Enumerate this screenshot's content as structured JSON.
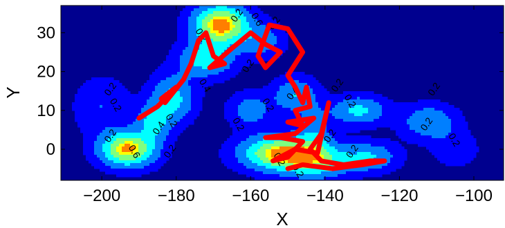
{
  "chart_data": {
    "type": "contour",
    "xlabel": "X",
    "ylabel": "Y",
    "xlim": [
      -211,
      -92
    ],
    "ylim": [
      -8,
      37
    ],
    "xticks": [
      -200,
      -180,
      -160,
      -140,
      -120,
      -100
    ],
    "yticks": [
      0,
      10,
      20,
      30
    ],
    "contour_levels": [
      0.2,
      0.4,
      0.6
    ],
    "contour_labels": [
      {
        "text": "0.2",
        "x": -163,
        "y": 34
      },
      {
        "text": "0.6",
        "x": -159,
        "y": 33
      },
      {
        "text": "0.2",
        "x": -153,
        "y": 32
      },
      {
        "text": "0.2",
        "x": -174,
        "y": 29
      },
      {
        "text": "0.2",
        "x": -160,
        "y": 21
      },
      {
        "text": "0.4",
        "x": -173,
        "y": 16
      },
      {
        "text": "0.2",
        "x": -197,
        "y": 15
      },
      {
        "text": "0.2",
        "x": -197,
        "y": 11
      },
      {
        "text": "0.4",
        "x": -148,
        "y": 14
      },
      {
        "text": "0.2",
        "x": -156,
        "y": 11
      },
      {
        "text": "0.2",
        "x": -136,
        "y": 16
      },
      {
        "text": "0.2",
        "x": -134,
        "y": 12
      },
      {
        "text": "0.2",
        "x": -110,
        "y": 15
      },
      {
        "text": "0.2",
        "x": -182,
        "y": 7
      },
      {
        "text": "0.4",
        "x": -184,
        "y": 5
      },
      {
        "text": "0.2",
        "x": -164,
        "y": 6
      },
      {
        "text": "0.2",
        "x": -112,
        "y": 6
      },
      {
        "text": "0.2",
        "x": -106,
        "y": 2
      },
      {
        "text": "0.2",
        "x": -197,
        "y": 3
      },
      {
        "text": "0.6",
        "x": -192,
        "y": -1
      },
      {
        "text": "0.2",
        "x": -181,
        "y": -1
      },
      {
        "text": "0.2",
        "x": -153,
        "y": -3
      },
      {
        "text": "0.2",
        "x": -138,
        "y": 3
      },
      {
        "text": "0.2",
        "x": -148,
        "y": -6
      },
      {
        "text": "0.2",
        "x": -132,
        "y": -1
      }
    ],
    "colormap": [
      "#00008f",
      "#0000ff",
      "#007fff",
      "#00ffff",
      "#7fff7f",
      "#ffff00",
      "#ff7f00"
    ],
    "density_peaks": [
      {
        "x": -168,
        "y": 32,
        "sx": 5,
        "sy": 3.5,
        "w": 1.0
      },
      {
        "x": -193,
        "y": 0,
        "sx": 5,
        "sy": 3,
        "w": 0.95
      },
      {
        "x": -152,
        "y": -1,
        "sx": 7,
        "sy": 3,
        "w": 0.92
      },
      {
        "x": -172,
        "y": 23,
        "sx": 5,
        "sy": 3,
        "w": 0.5
      },
      {
        "x": -181,
        "y": 13,
        "sx": 4,
        "sy": 4,
        "w": 0.48
      },
      {
        "x": -186,
        "y": 7,
        "sx": 3,
        "sy": 3,
        "w": 0.45
      },
      {
        "x": -142,
        "y": -3,
        "sx": 6,
        "sy": 3,
        "w": 0.55
      },
      {
        "x": -128,
        "y": -2,
        "sx": 5,
        "sy": 2.5,
        "w": 0.4
      },
      {
        "x": -148,
        "y": 14,
        "sx": 4,
        "sy": 3,
        "w": 0.4
      },
      {
        "x": -131,
        "y": 10,
        "sx": 5,
        "sy": 2.5,
        "w": 0.45
      },
      {
        "x": -112,
        "y": 7,
        "sx": 5,
        "sy": 3,
        "w": 0.38
      },
      {
        "x": -160,
        "y": 10,
        "sx": 4,
        "sy": 3,
        "w": 0.3
      },
      {
        "x": -143,
        "y": 5,
        "sx": 3,
        "sy": 4,
        "w": 0.3
      },
      {
        "x": -157,
        "y": 28,
        "sx": 4,
        "sy": 3,
        "w": 0.3
      },
      {
        "x": -200,
        "y": 11,
        "sx": 5,
        "sy": 5,
        "w": 0.2
      },
      {
        "x": -105,
        "y": 0,
        "sx": 4,
        "sy": 3,
        "w": 0.18
      }
    ],
    "series": [
      {
        "color": "#ff0000",
        "points": [
          [
            -190,
            8
          ],
          [
            -185,
            11
          ],
          [
            -182,
            14
          ],
          [
            -184,
            13
          ],
          [
            -180,
            16
          ],
          [
            -183,
            12
          ],
          [
            -178,
            18
          ],
          [
            -176,
            22
          ],
          [
            -174,
            28
          ],
          [
            -172,
            30
          ],
          [
            -170,
            24
          ],
          [
            -167,
            22
          ],
          [
            -171,
            21
          ],
          [
            -165,
            26
          ],
          [
            -160,
            30
          ],
          [
            -156,
            27
          ],
          [
            -152,
            25
          ],
          [
            -156,
            21
          ],
          [
            -158,
            24
          ],
          [
            -155,
            32
          ],
          [
            -150,
            31
          ],
          [
            -146,
            25
          ],
          [
            -150,
            19
          ],
          [
            -148,
            16
          ],
          [
            -146,
            12
          ],
          [
            -145,
            16
          ],
          [
            -144,
            11
          ],
          [
            -148,
            10
          ],
          [
            -146,
            6
          ],
          [
            -150,
            7
          ],
          [
            -143,
            8
          ],
          [
            -148,
            4
          ],
          [
            -156,
            3
          ],
          [
            -152,
            3
          ],
          [
            -146,
            2
          ],
          [
            -150,
            -2
          ],
          [
            -154,
            -3
          ],
          [
            -148,
            0
          ],
          [
            -142,
            -1
          ],
          [
            -139,
            12
          ],
          [
            -141,
            4
          ],
          [
            -144,
            0
          ],
          [
            -141,
            -3
          ],
          [
            -135,
            -4
          ],
          [
            -128,
            -3
          ],
          [
            -124,
            -3
          ],
          [
            -130,
            -4
          ],
          [
            -138,
            -5
          ],
          [
            -146,
            -4
          ],
          [
            -150,
            -5
          ]
        ]
      }
    ]
  }
}
